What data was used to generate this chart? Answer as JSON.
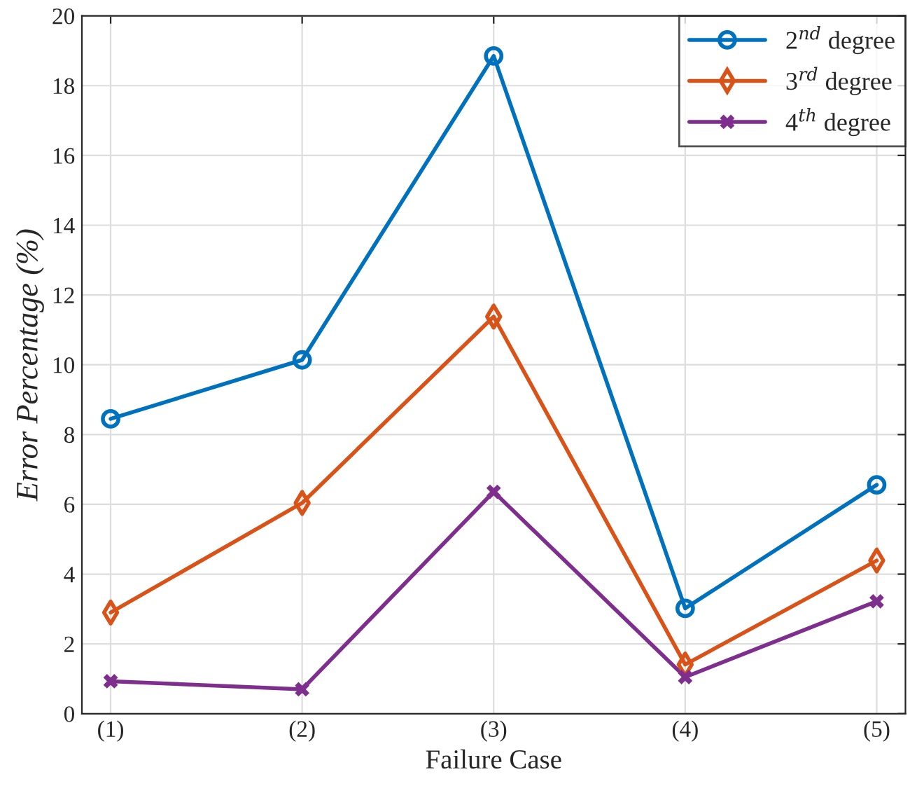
{
  "chart_data": {
    "type": "line",
    "xlabel": "Failure Case",
    "ylabel": "Error Percentage (%)",
    "categories": [
      "(1)",
      "(2)",
      "(3)",
      "(4)",
      "(5)"
    ],
    "series": [
      {
        "name": "2$^{nd}$ degree",
        "color": "#0072bd",
        "marker": "circle",
        "values": [
          8.45,
          10.14,
          18.85,
          3.02,
          6.56
        ]
      },
      {
        "name": "3$^{rd}$ degree",
        "color": "#d95319",
        "marker": "diamond",
        "values": [
          2.9,
          6.04,
          11.38,
          1.41,
          4.39
        ]
      },
      {
        "name": "4$^{th}$ degree",
        "color": "#7e2f8e",
        "marker": "cross",
        "values": [
          0.93,
          0.7,
          6.36,
          1.05,
          3.22
        ]
      }
    ],
    "ylim": [
      0,
      20
    ],
    "yticks": [
      0,
      2,
      4,
      6,
      8,
      10,
      12,
      14,
      16,
      18,
      20
    ],
    "grid": true,
    "legend": "top right",
    "line_style": "solid"
  }
}
